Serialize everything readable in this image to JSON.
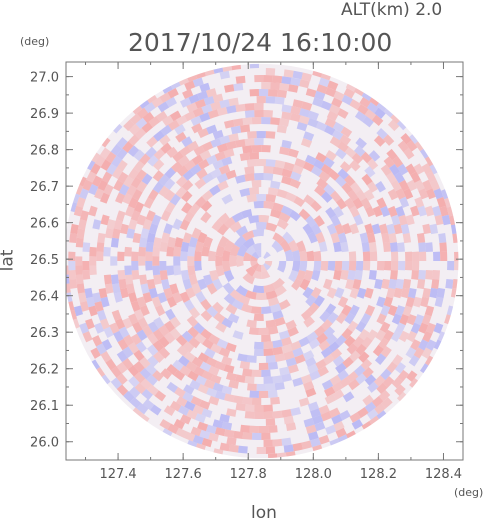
{
  "header": {
    "altitude_label": "ALT(km) 2.0",
    "timestamp": "2017/10/24 16:10:00"
  },
  "chart_data": {
    "type": "heatmap",
    "title": "2017/10/24 16:10:00",
    "subtitle": "ALT(km) 2.0",
    "xlabel": "lon",
    "ylabel": "lat",
    "x_unit": "(deg)",
    "y_unit": "(deg)",
    "xlim": [
      127.24,
      128.46
    ],
    "ylim": [
      25.95,
      27.04
    ],
    "xticks": [
      "127.4",
      "127.6",
      "127.8",
      "128.0",
      "128.2",
      "128.4"
    ],
    "yticks": [
      "26.0",
      "26.1",
      "26.2",
      "26.3",
      "26.4",
      "26.5",
      "26.6",
      "26.7",
      "26.8",
      "26.9",
      "27.0"
    ],
    "radar_center": {
      "lon": 127.84,
      "lat": 26.495
    },
    "radar_radius_deg_lat": 0.54,
    "colors": {
      "positive": "#f4a6a6",
      "negative": "#b4b4f4",
      "neutral": "#f3eef3",
      "axis": "#777777",
      "text": "#555555"
    },
    "grid": false
  }
}
